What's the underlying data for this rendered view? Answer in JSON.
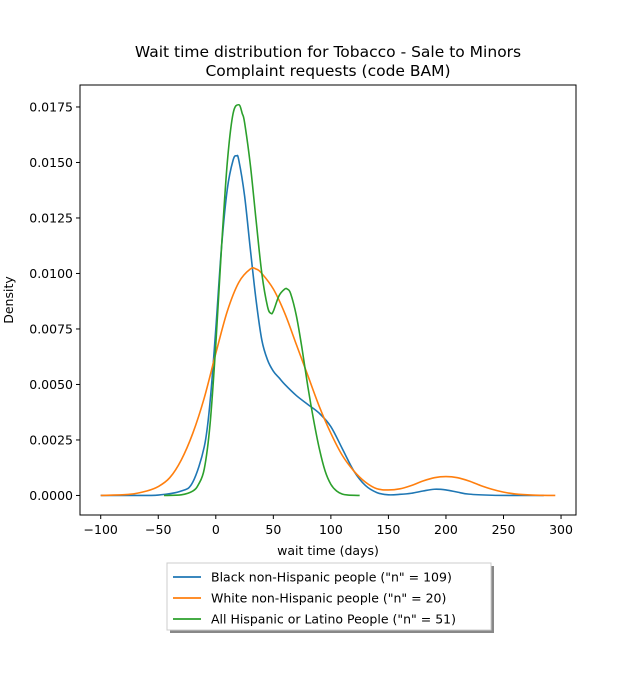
{
  "chart_data": {
    "type": "line",
    "title_lines": [
      "Wait time distribution  for Tobacco - Sale to Minors",
      "Complaint requests (code BAM)"
    ],
    "xlabel": "wait time (days)",
    "ylabel": "Density",
    "xlim": [
      -118,
      313
    ],
    "ylim": [
      -0.00088,
      0.01849
    ],
    "xticks": [
      -100,
      -50,
      0,
      50,
      100,
      150,
      200,
      250,
      300
    ],
    "xtick_labels": [
      "−100",
      "−50",
      "0",
      "50",
      "100",
      "150",
      "200",
      "250",
      "300"
    ],
    "yticks": [
      0,
      0.0025,
      0.005,
      0.0075,
      0.01,
      0.0125,
      0.015,
      0.0175
    ],
    "ytick_labels": [
      "0.0000",
      "0.0025",
      "0.0050",
      "0.0075",
      "0.0100",
      "0.0125",
      "0.0150",
      "0.0175"
    ],
    "grid": false,
    "legend_position": "below plot, centered",
    "series": [
      {
        "name": "Black non-Hispanic people (\"n\" = 109)",
        "color": "#1f77b4",
        "x": [
          -100,
          -75,
          -50,
          -30,
          -20,
          -10,
          -5,
          0,
          5,
          10,
          15,
          18,
          20,
          25,
          30,
          35,
          40,
          45,
          50,
          55,
          60,
          70,
          80,
          90,
          100,
          110,
          120,
          130,
          140,
          150,
          160,
          170,
          180,
          190,
          200,
          210,
          220,
          240,
          260,
          285
        ],
        "y": [
          0,
          0,
          2e-05,
          0.0002,
          0.0006,
          0.0022,
          0.0042,
          0.0075,
          0.0112,
          0.0138,
          0.0151,
          0.0153,
          0.0151,
          0.0135,
          0.0111,
          0.0088,
          0.007,
          0.0061,
          0.0056,
          0.0053,
          0.005,
          0.0045,
          0.0041,
          0.0037,
          0.0031,
          0.0021,
          0.0011,
          0.00045,
          0.00013,
          3e-05,
          5e-05,
          0.0001,
          0.0002,
          0.00028,
          0.00025,
          0.00015,
          6e-05,
          1e-05,
          0,
          0
        ]
      },
      {
        "name": "White non-Hispanic people (\"n\" = 20)",
        "color": "#ff7f0e",
        "x": [
          -100,
          -75,
          -60,
          -50,
          -40,
          -30,
          -20,
          -10,
          0,
          10,
          20,
          30,
          35,
          40,
          50,
          60,
          70,
          80,
          90,
          100,
          110,
          120,
          130,
          140,
          150,
          160,
          170,
          180,
          190,
          200,
          210,
          220,
          230,
          240,
          250,
          260,
          275,
          295
        ],
        "y": [
          0,
          5e-05,
          0.0002,
          0.0004,
          0.0008,
          0.0016,
          0.0028,
          0.0044,
          0.0064,
          0.0083,
          0.0096,
          0.0102,
          0.0102,
          0.01,
          0.0093,
          0.0082,
          0.0068,
          0.0054,
          0.004,
          0.0028,
          0.0018,
          0.0011,
          0.0006,
          0.0003,
          0.00025,
          0.0003,
          0.00045,
          0.00065,
          0.0008,
          0.00085,
          0.0008,
          0.00065,
          0.00045,
          0.00028,
          0.00015,
          7e-05,
          2e-05,
          0
        ]
      },
      {
        "name": "All Hispanic or Latino People (\"n\" = 51)",
        "color": "#2ca02c",
        "x": [
          -45,
          -30,
          -20,
          -15,
          -10,
          -5,
          0,
          5,
          10,
          15,
          20,
          23,
          25,
          30,
          35,
          40,
          45,
          48,
          50,
          55,
          60,
          62,
          65,
          70,
          75,
          80,
          85,
          90,
          95,
          100,
          105,
          110,
          115,
          125
        ],
        "y": [
          0,
          3e-05,
          0.0002,
          0.0005,
          0.0012,
          0.0032,
          0.0068,
          0.0112,
          0.015,
          0.0172,
          0.0176,
          0.0172,
          0.0168,
          0.0149,
          0.0124,
          0.01,
          0.0085,
          0.0082,
          0.0083,
          0.009,
          0.0093,
          0.0093,
          0.0091,
          0.0081,
          0.0066,
          0.0049,
          0.0034,
          0.0021,
          0.0011,
          0.0005,
          0.0002,
          6e-05,
          2e-05,
          0
        ]
      }
    ]
  }
}
